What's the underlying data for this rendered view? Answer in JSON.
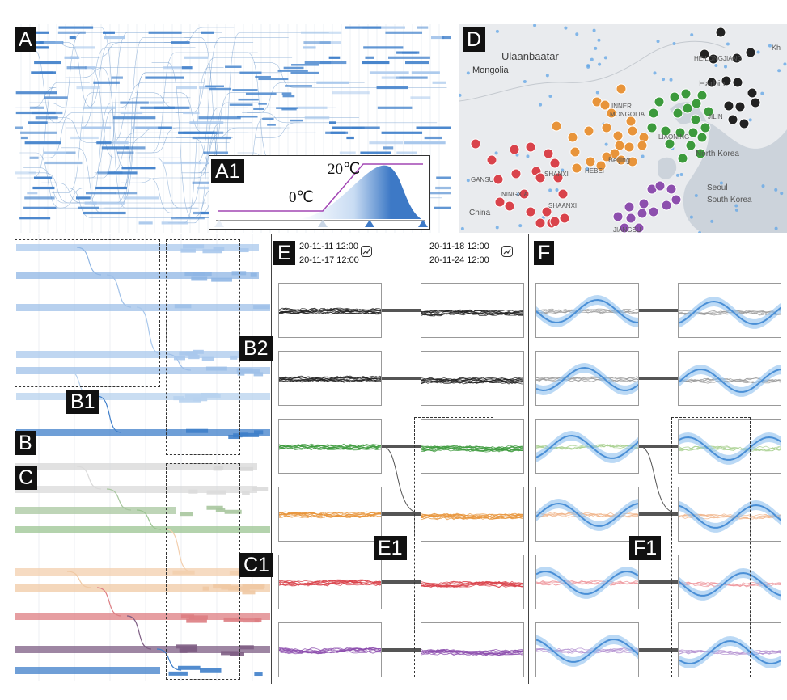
{
  "labels": {
    "A": "A",
    "A1": "A1",
    "B": "B",
    "B1": "B1",
    "B2": "B2",
    "C": "C",
    "C1": "C1",
    "D": "D",
    "E": "E",
    "E1": "E1",
    "F": "F",
    "F1": "F1"
  },
  "temperature": {
    "zero": "0℃",
    "twenty": "20℃"
  },
  "dates": {
    "left_start": "20-11-11 12:00",
    "left_end": "20-11-17 12:00",
    "right_start": "20-11-18 12:00",
    "right_end": "20-11-24 12:00"
  },
  "map_labels": {
    "ulaanbaatar": "Ulaanbaatar",
    "mongolia": "Mongolia",
    "heilongjiang": "HEILONGJIANG",
    "harbin": "Harbin",
    "jilin": "JILIN",
    "north_korea": "North Korea",
    "seoul": "Seoul",
    "south_korea": "South Korea",
    "beijing": "Beijing",
    "hebei": "HEBEI",
    "shanxi": "SHANXI",
    "ningxia": "NINGXIA",
    "shaanxi": "SHAANXI",
    "gansu": "GANSU",
    "china": "China",
    "inner_mongolia_1": "INNER",
    "inner_mongolia_2": "MONGOLIA",
    "liaoning": "LIAONING",
    "jiangsu": "JIANGSU",
    "kh": "Kh"
  },
  "colors": {
    "blue": "#3f7fca",
    "light_blue": "#a9c8ec",
    "green": "#3c9a3c",
    "orange": "#e8943a",
    "red": "#d9434b",
    "purple": "#8d4fae",
    "black": "#222222",
    "gray_line": "#555555"
  },
  "icons": {
    "trend": "trend-chart-icon",
    "temp_marker": "triangle-marker-icon"
  }
}
